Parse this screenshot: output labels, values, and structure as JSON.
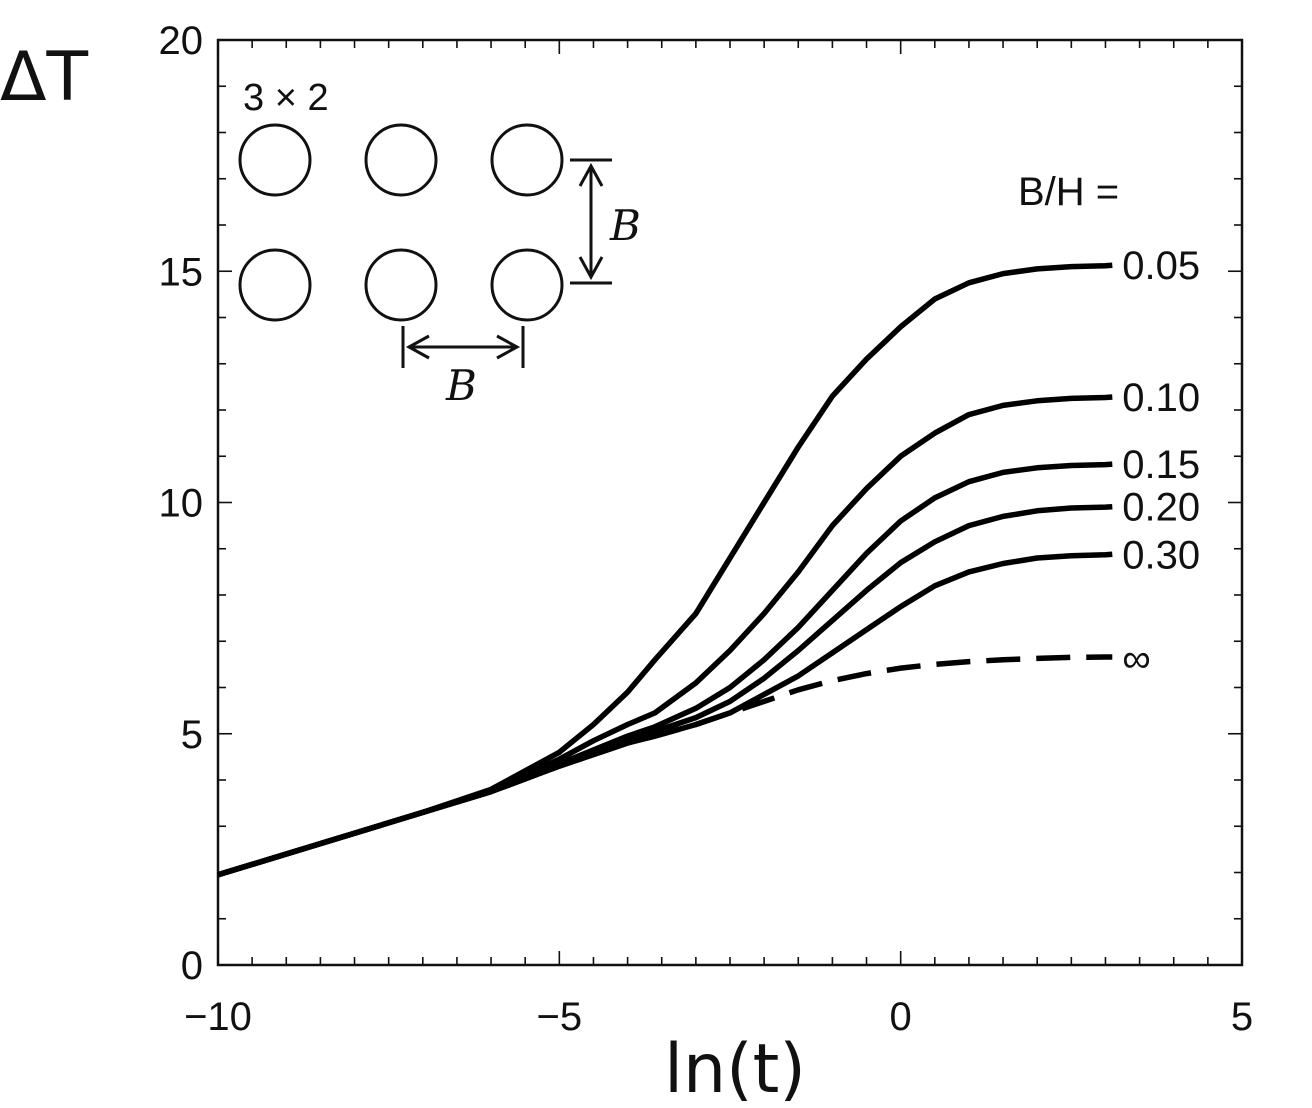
{
  "chart_data": {
    "type": "line",
    "title": "",
    "xlabel": "ln(t)",
    "ylabel": "ΔT",
    "xlim": [
      -10,
      5
    ],
    "ylim": [
      0,
      20
    ],
    "xticks": [
      -10,
      -5,
      0,
      5
    ],
    "yticks": [
      0,
      5,
      10,
      15,
      20
    ],
    "xtick_labels": [
      "−10",
      "−5",
      "0",
      "5"
    ],
    "ytick_labels": [
      "0",
      "5",
      "10",
      "15",
      "20"
    ],
    "grid": false,
    "legend": {
      "title": "B/H =",
      "placement": "right, labels at line ends"
    },
    "inset": {
      "title": "3 × 2",
      "spacing_label_vertical": "B",
      "spacing_label_horizontal": "B"
    },
    "series": [
      {
        "name": "0.05",
        "style": "solid",
        "x": [
          -10,
          -9,
          -8,
          -7,
          -6,
          -5,
          -4.5,
          -4,
          -3.6,
          -3,
          -2.5,
          -2,
          -1.5,
          -1,
          -0.5,
          0,
          0.5,
          1,
          1.5,
          2,
          2.5,
          3,
          3.1
        ],
        "y": [
          1.95,
          2.4,
          2.85,
          3.3,
          3.8,
          4.6,
          5.2,
          5.9,
          6.6,
          7.6,
          8.8,
          10.0,
          11.2,
          12.3,
          13.1,
          13.8,
          14.4,
          14.75,
          14.95,
          15.05,
          15.1,
          15.12,
          15.13
        ]
      },
      {
        "name": "0.10",
        "style": "solid",
        "x": [
          -10,
          -9,
          -8,
          -7,
          -6,
          -5,
          -4.5,
          -4,
          -3.6,
          -3,
          -2.5,
          -2,
          -1.5,
          -1,
          -0.5,
          0,
          0.5,
          1,
          1.5,
          2,
          2.5,
          3,
          3.1
        ],
        "y": [
          1.95,
          2.4,
          2.85,
          3.3,
          3.78,
          4.45,
          4.85,
          5.2,
          5.45,
          6.1,
          6.8,
          7.6,
          8.5,
          9.5,
          10.3,
          11.0,
          11.5,
          11.9,
          12.1,
          12.2,
          12.25,
          12.27,
          12.28
        ]
      },
      {
        "name": "0.15",
        "style": "solid",
        "x": [
          -10,
          -9,
          -8,
          -7,
          -6,
          -5,
          -4.5,
          -4,
          -3.6,
          -3,
          -2.5,
          -2,
          -1.5,
          -1,
          -0.5,
          0,
          0.5,
          1,
          1.5,
          2,
          2.5,
          3,
          3.1
        ],
        "y": [
          1.95,
          2.4,
          2.85,
          3.3,
          3.75,
          4.35,
          4.65,
          4.95,
          5.15,
          5.55,
          6.0,
          6.6,
          7.3,
          8.1,
          8.9,
          9.6,
          10.1,
          10.45,
          10.65,
          10.75,
          10.8,
          10.82,
          10.83
        ]
      },
      {
        "name": "0.20",
        "style": "solid",
        "x": [
          -10,
          -9,
          -8,
          -7,
          -6,
          -5,
          -4.5,
          -4,
          -3.6,
          -3,
          -2.5,
          -2,
          -1.5,
          -1,
          -0.5,
          0,
          0.5,
          1,
          1.5,
          2,
          2.5,
          3,
          3.1
        ],
        "y": [
          1.95,
          2.4,
          2.85,
          3.3,
          3.75,
          4.3,
          4.6,
          4.85,
          5.05,
          5.35,
          5.7,
          6.2,
          6.8,
          7.45,
          8.1,
          8.7,
          9.15,
          9.5,
          9.7,
          9.82,
          9.88,
          9.9,
          9.91
        ]
      },
      {
        "name": "0.30",
        "style": "solid",
        "x": [
          -10,
          -9,
          -8,
          -7,
          -6,
          -5,
          -4.5,
          -4,
          -3.6,
          -3,
          -2.5,
          -2,
          -1.5,
          -1,
          -0.5,
          0,
          0.5,
          1,
          1.5,
          2,
          2.5,
          3,
          3.1
        ],
        "y": [
          1.95,
          2.4,
          2.85,
          3.3,
          3.75,
          4.3,
          4.55,
          4.8,
          4.95,
          5.2,
          5.45,
          5.85,
          6.25,
          6.75,
          7.25,
          7.75,
          8.2,
          8.5,
          8.68,
          8.8,
          8.85,
          8.87,
          8.88
        ]
      },
      {
        "name": "∞",
        "style": "dashed",
        "x": [
          -10,
          -9,
          -8,
          -7,
          -6,
          -5,
          -4.5,
          -4,
          -3.6,
          -3,
          -2.5,
          -2,
          -1.5,
          -1,
          -0.5,
          0,
          0.5,
          1,
          1.5,
          2,
          2.5,
          3,
          3.1
        ],
        "y": [
          1.95,
          2.4,
          2.85,
          3.3,
          3.75,
          4.3,
          4.55,
          4.8,
          4.95,
          5.2,
          5.45,
          5.7,
          5.95,
          6.15,
          6.3,
          6.42,
          6.5,
          6.56,
          6.6,
          6.63,
          6.65,
          6.66,
          6.66
        ]
      }
    ]
  }
}
